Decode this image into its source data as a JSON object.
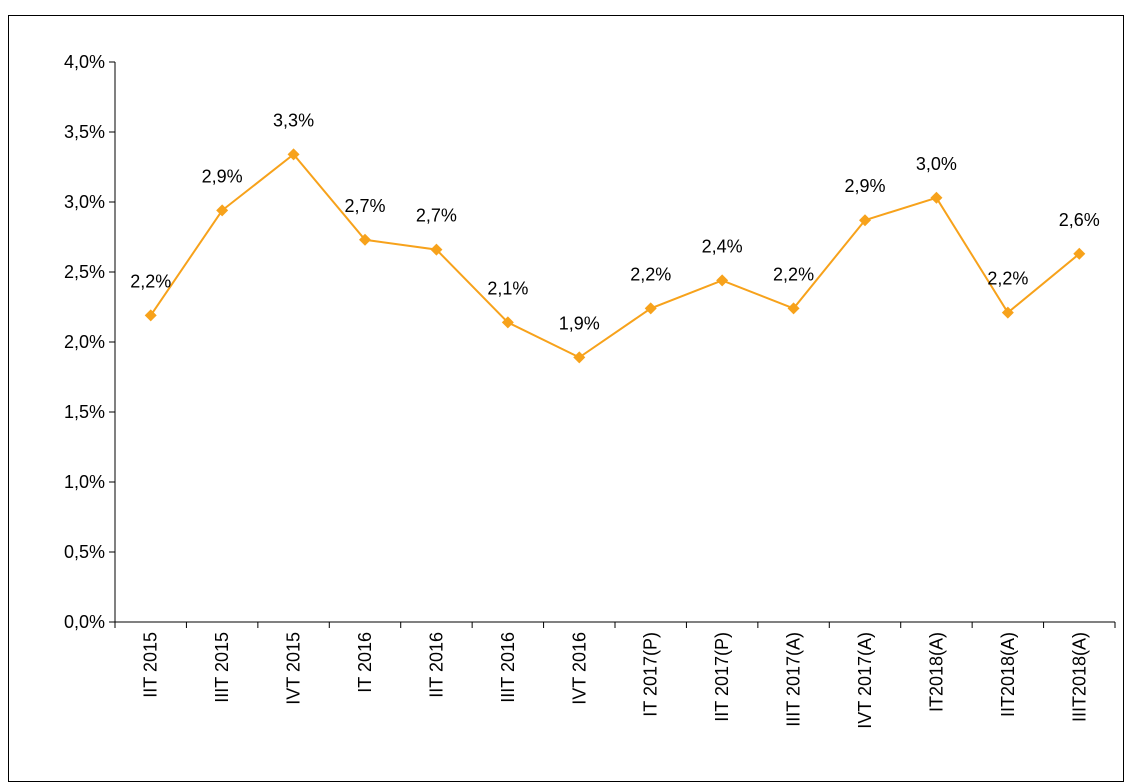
{
  "chart_data": {
    "type": "line",
    "categories": [
      "IIT 2015",
      "IIIT 2015",
      "IVT 2015",
      "IT 2016",
      "IIT 2016",
      "IIIT 2016",
      "IVT 2016",
      "IT 2017(P)",
      "IIT 2017(P)",
      "IIIT 2017(A)",
      "IVT 2017(A)",
      "IT2018(A)",
      "IIT2018(A)",
      "IIIT2018(A)"
    ],
    "series": [
      {
        "color": "#f7a21b",
        "values": [
          2.19,
          2.94,
          3.34,
          2.73,
          2.66,
          2.14,
          1.89,
          2.24,
          2.44,
          2.24,
          2.87,
          3.03,
          2.21,
          2.63
        ],
        "value_labels": [
          "2,2%",
          "2,9%",
          "3,3%",
          "2,7%",
          "2,7%",
          "2,1%",
          "1,9%",
          "2,2%",
          "2,4%",
          "2,2%",
          "2,9%",
          "3,0%",
          "2,2%",
          "2,6%"
        ]
      }
    ],
    "ylim": [
      0,
      4
    ],
    "yticks": [
      {
        "value": 0,
        "label": "0,0%"
      },
      {
        "value": 0.5,
        "label": "0,5%"
      },
      {
        "value": 1,
        "label": "1,0%"
      },
      {
        "value": 1.5,
        "label": "1,5%"
      },
      {
        "value": 2,
        "label": "2,0%"
      },
      {
        "value": 2.5,
        "label": "2,5%"
      },
      {
        "value": 3,
        "label": "3,0%"
      },
      {
        "value": 3.5,
        "label": "3,5%"
      },
      {
        "value": 4,
        "label": "4,0%"
      }
    ],
    "grid": false
  }
}
